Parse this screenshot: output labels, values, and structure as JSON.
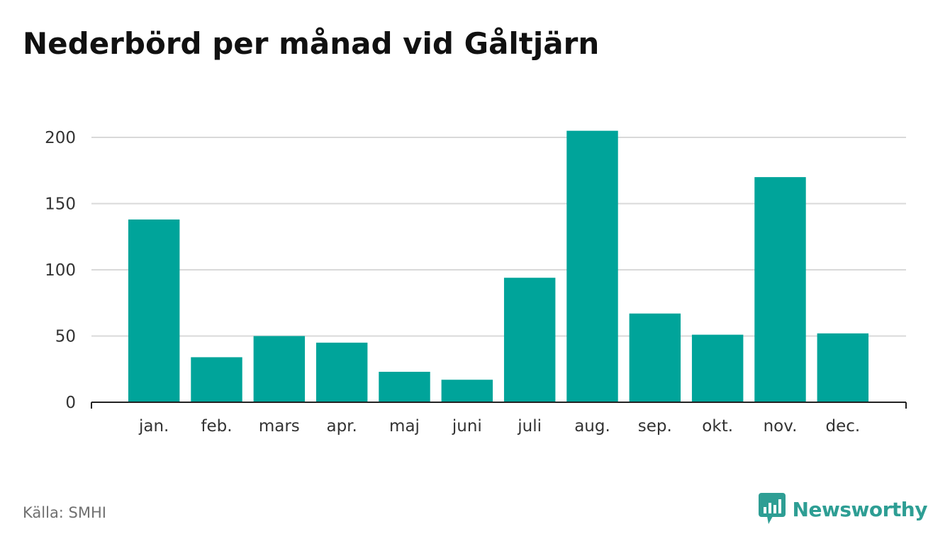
{
  "title": "Nederbörd per månad vid Gåltjärn",
  "source": "Källa: SMHI",
  "brand": "Newsworthy",
  "colors": {
    "bar": "#00a49a",
    "grid": "#d9d9d9",
    "axis": "#222222",
    "brand": "#2e9e94"
  },
  "chart_data": {
    "type": "bar",
    "title": "Nederbörd per månad vid Gåltjärn",
    "xlabel": "",
    "ylabel": "",
    "categories": [
      "jan.",
      "feb.",
      "mars",
      "apr.",
      "maj",
      "juni",
      "juli",
      "aug.",
      "sep.",
      "okt.",
      "nov.",
      "dec."
    ],
    "values": [
      138,
      34,
      50,
      45,
      23,
      17,
      94,
      205,
      67,
      51,
      170,
      52
    ],
    "ylim": [
      0,
      200
    ],
    "yticks": [
      0,
      50,
      100,
      150,
      200
    ],
    "grid": true,
    "legend": "none"
  }
}
